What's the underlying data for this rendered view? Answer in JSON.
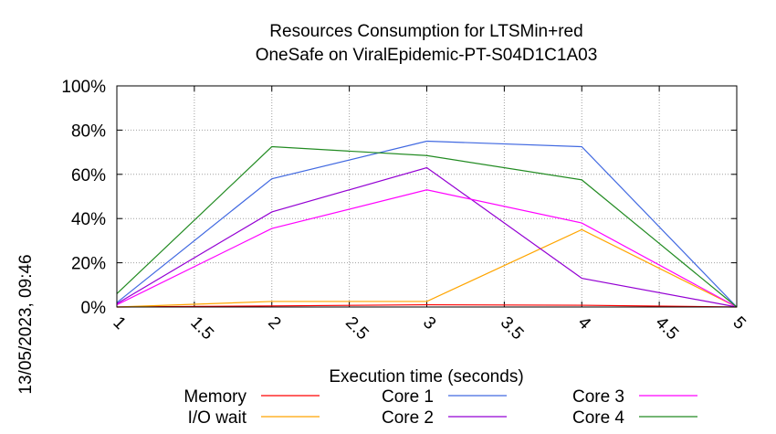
{
  "chart_data": {
    "type": "line",
    "title_lines": [
      "Resources Consumption for LTSMin+red",
      "OneSafe on ViralEpidemic-PT-S04D1C1A03"
    ],
    "xlabel": "Execution time (seconds)",
    "ylabel": "",
    "side_label": "13/05/2023, 09:46",
    "xlim": [
      1,
      5
    ],
    "ylim": [
      0,
      100
    ],
    "x_ticks": [
      "1",
      "1.5",
      "2",
      "2.5",
      "3",
      "3.5",
      "4",
      "4.5",
      "5"
    ],
    "y_ticks": [
      "0%",
      "20%",
      "40%",
      "60%",
      "80%",
      "100%"
    ],
    "grid": true,
    "legend_position": "bottom",
    "x": [
      1,
      2,
      3,
      4,
      5
    ],
    "series": [
      {
        "name": "Memory",
        "color": "#ff0000",
        "values": [
          0,
          0.5,
          1,
          0.8,
          0
        ]
      },
      {
        "name": "I/O wait",
        "color": "#ffa500",
        "values": [
          0,
          2.5,
          2.5,
          35,
          0
        ]
      },
      {
        "name": "Core 1",
        "color": "#4169e1",
        "values": [
          2,
          58,
          75,
          72.5,
          0
        ]
      },
      {
        "name": "Core 2",
        "color": "#9400d3",
        "values": [
          1.5,
          43,
          63,
          13,
          0
        ]
      },
      {
        "name": "Core 3",
        "color": "#ff00ff",
        "values": [
          1,
          35.5,
          53,
          38,
          0
        ]
      },
      {
        "name": "Core 4",
        "color": "#228b22",
        "values": [
          6,
          72.5,
          68.5,
          57.5,
          0
        ]
      }
    ]
  }
}
